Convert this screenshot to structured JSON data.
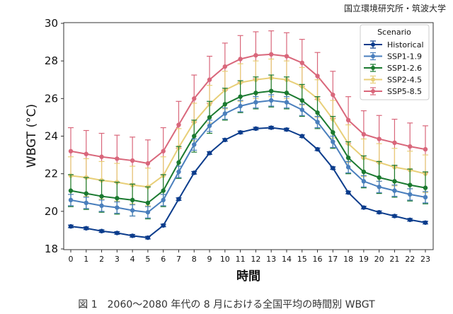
{
  "credit": "国立環境研究所・筑波大学",
  "caption": "図 1　2060～2080 年代の 8 月における全国平均の時間別 WBGT",
  "chart_data": {
    "type": "line",
    "title": "",
    "xlabel": "時間",
    "ylabel": "WBGT (°C)",
    "x": [
      0,
      1,
      2,
      3,
      4,
      5,
      6,
      7,
      8,
      9,
      10,
      11,
      12,
      13,
      14,
      15,
      16,
      17,
      18,
      19,
      20,
      21,
      22,
      23
    ],
    "xticks": [
      "0",
      "1",
      "2",
      "3",
      "4",
      "5",
      "6",
      "7",
      "8",
      "9",
      "10",
      "11",
      "12",
      "13",
      "14",
      "15",
      "16",
      "17",
      "18",
      "19",
      "20",
      "21",
      "22",
      "23"
    ],
    "ylim": [
      18,
      30
    ],
    "yticks": [
      18,
      20,
      22,
      24,
      26,
      28,
      30
    ],
    "grid": false,
    "legend": {
      "title": "Scenario",
      "placement": "top-right"
    },
    "error_bars": true,
    "series": [
      {
        "name": "Historical",
        "color": "#0b3c8c",
        "values": [
          19.2,
          19.1,
          18.95,
          18.85,
          18.7,
          18.6,
          19.25,
          20.65,
          22.05,
          23.1,
          23.8,
          24.2,
          24.4,
          24.45,
          24.35,
          24.0,
          23.3,
          22.3,
          21.0,
          20.2,
          19.95,
          19.75,
          19.55,
          19.4
        ],
        "error": 0.07
      },
      {
        "name": "SSP1-1.9",
        "color": "#4a7fbd",
        "values": [
          20.6,
          20.45,
          20.3,
          20.2,
          20.05,
          19.95,
          20.6,
          22.1,
          23.55,
          24.55,
          25.2,
          25.6,
          25.8,
          25.9,
          25.8,
          25.4,
          24.75,
          23.7,
          22.35,
          21.6,
          21.3,
          21.1,
          20.9,
          20.75
        ],
        "error": 0.3
      },
      {
        "name": "SSP1-2.6",
        "color": "#1b7a30",
        "values": [
          21.1,
          20.95,
          20.8,
          20.7,
          20.6,
          20.45,
          21.1,
          22.6,
          24.0,
          25.0,
          25.7,
          26.1,
          26.3,
          26.4,
          26.3,
          25.9,
          25.25,
          24.2,
          22.85,
          22.1,
          21.8,
          21.6,
          21.4,
          21.25
        ],
        "error": 0.85
      },
      {
        "name": "SSP2-4.5",
        "color": "#e8cf78",
        "values": [
          21.9,
          21.8,
          21.65,
          21.55,
          21.4,
          21.3,
          21.9,
          23.4,
          24.75,
          25.7,
          26.45,
          26.85,
          27.0,
          27.1,
          27.0,
          26.65,
          26.0,
          24.9,
          23.6,
          22.85,
          22.6,
          22.35,
          22.2,
          22.0
        ],
        "error": 1.0
      },
      {
        "name": "SSP5-8.5",
        "color": "#d9677b",
        "values": [
          23.2,
          23.05,
          22.9,
          22.8,
          22.7,
          22.55,
          23.2,
          24.6,
          26.0,
          27.0,
          27.7,
          28.1,
          28.3,
          28.35,
          28.25,
          27.9,
          27.2,
          26.2,
          24.85,
          24.1,
          23.85,
          23.65,
          23.45,
          23.3
        ],
        "error": 1.25
      }
    ]
  }
}
